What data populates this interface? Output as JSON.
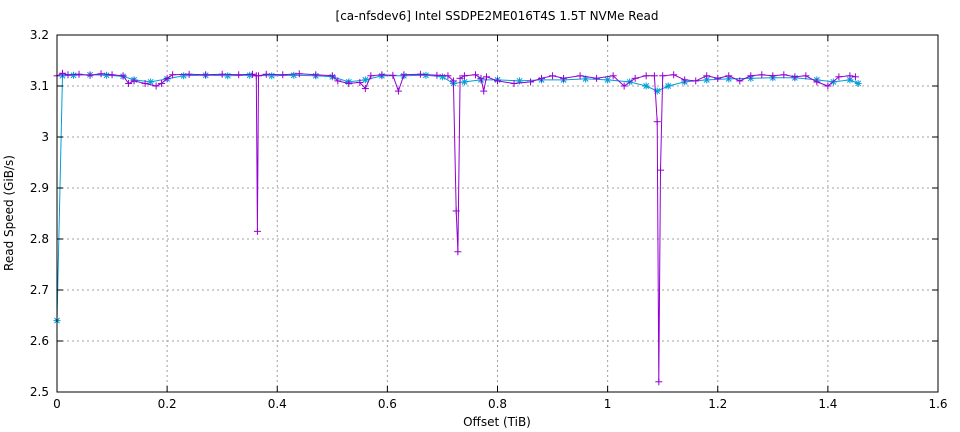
{
  "chart_data": {
    "type": "line",
    "title": "[ca-nfsdev6] Intel SSDPE2ME016T4S 1.5T NVMe Read",
    "xlabel": "Offset (TiB)",
    "ylabel": "Read Speed (GiB/s)",
    "xlim": [
      0,
      1.6
    ],
    "ylim": [
      2.5,
      3.2
    ],
    "xticks": [
      0,
      0.2,
      0.4,
      0.6,
      0.8,
      1,
      1.2,
      1.4,
      1.6
    ],
    "xtick_labels": [
      "0",
      "0.2",
      "0.4",
      "0.6",
      "0.8",
      "1",
      "1.2",
      "1.4",
      "1.6"
    ],
    "yticks": [
      2.5,
      2.6,
      2.7,
      2.8,
      2.9,
      3,
      3.1,
      3.2
    ],
    "ytick_labels": [
      "2.5",
      "2.6",
      "2.7",
      "2.8",
      "2.9",
      "3",
      "3.1",
      "3.2"
    ],
    "grid": true,
    "legend": "none",
    "series": [
      {
        "marker": "plus",
        "color": "#9400d3",
        "points": [
          [
            0.0,
            3.12
          ],
          [
            0.01,
            3.125
          ],
          [
            0.02,
            3.122
          ],
          [
            0.04,
            3.123
          ],
          [
            0.06,
            3.121
          ],
          [
            0.08,
            3.124
          ],
          [
            0.1,
            3.122
          ],
          [
            0.12,
            3.12
          ],
          [
            0.13,
            3.105
          ],
          [
            0.14,
            3.11
          ],
          [
            0.16,
            3.105
          ],
          [
            0.18,
            3.1
          ],
          [
            0.19,
            3.105
          ],
          [
            0.2,
            3.115
          ],
          [
            0.21,
            3.122
          ],
          [
            0.24,
            3.123
          ],
          [
            0.27,
            3.122
          ],
          [
            0.3,
            3.123
          ],
          [
            0.33,
            3.122
          ],
          [
            0.355,
            3.123
          ],
          [
            0.362,
            3.12
          ],
          [
            0.364,
            2.815
          ],
          [
            0.366,
            3.12
          ],
          [
            0.38,
            3.123
          ],
          [
            0.41,
            3.122
          ],
          [
            0.44,
            3.124
          ],
          [
            0.47,
            3.122
          ],
          [
            0.5,
            3.12
          ],
          [
            0.51,
            3.11
          ],
          [
            0.53,
            3.105
          ],
          [
            0.55,
            3.107
          ],
          [
            0.56,
            3.095
          ],
          [
            0.57,
            3.12
          ],
          [
            0.59,
            3.122
          ],
          [
            0.61,
            3.121
          ],
          [
            0.62,
            3.09
          ],
          [
            0.63,
            3.122
          ],
          [
            0.66,
            3.123
          ],
          [
            0.69,
            3.121
          ],
          [
            0.71,
            3.12
          ],
          [
            0.72,
            3.11
          ],
          [
            0.725,
            2.855
          ],
          [
            0.728,
            2.775
          ],
          [
            0.732,
            3.115
          ],
          [
            0.74,
            3.12
          ],
          [
            0.76,
            3.122
          ],
          [
            0.77,
            3.115
          ],
          [
            0.775,
            3.09
          ],
          [
            0.78,
            3.118
          ],
          [
            0.8,
            3.11
          ],
          [
            0.83,
            3.105
          ],
          [
            0.86,
            3.108
          ],
          [
            0.88,
            3.115
          ],
          [
            0.9,
            3.12
          ],
          [
            0.92,
            3.115
          ],
          [
            0.95,
            3.12
          ],
          [
            0.98,
            3.115
          ],
          [
            1.01,
            3.12
          ],
          [
            1.03,
            3.1
          ],
          [
            1.05,
            3.115
          ],
          [
            1.07,
            3.12
          ],
          [
            1.085,
            3.12
          ],
          [
            1.09,
            3.03
          ],
          [
            1.093,
            2.52
          ],
          [
            1.096,
            2.935
          ],
          [
            1.1,
            3.12
          ],
          [
            1.12,
            3.122
          ],
          [
            1.14,
            3.112
          ],
          [
            1.16,
            3.11
          ],
          [
            1.18,
            3.12
          ],
          [
            1.2,
            3.115
          ],
          [
            1.22,
            3.12
          ],
          [
            1.24,
            3.11
          ],
          [
            1.26,
            3.12
          ],
          [
            1.28,
            3.122
          ],
          [
            1.3,
            3.12
          ],
          [
            1.32,
            3.122
          ],
          [
            1.34,
            3.118
          ],
          [
            1.36,
            3.12
          ],
          [
            1.38,
            3.108
          ],
          [
            1.4,
            3.1
          ],
          [
            1.42,
            3.118
          ],
          [
            1.44,
            3.12
          ],
          [
            1.45,
            3.118
          ]
        ]
      },
      {
        "marker": "star",
        "color": "#009ed7",
        "points": [
          [
            0.0,
            2.64
          ],
          [
            0.01,
            3.12
          ],
          [
            0.03,
            3.121
          ],
          [
            0.06,
            3.122
          ],
          [
            0.09,
            3.121
          ],
          [
            0.12,
            3.119
          ],
          [
            0.14,
            3.112
          ],
          [
            0.17,
            3.108
          ],
          [
            0.2,
            3.114
          ],
          [
            0.23,
            3.12
          ],
          [
            0.27,
            3.121
          ],
          [
            0.31,
            3.12
          ],
          [
            0.35,
            3.121
          ],
          [
            0.39,
            3.12
          ],
          [
            0.43,
            3.121
          ],
          [
            0.47,
            3.12
          ],
          [
            0.5,
            3.118
          ],
          [
            0.53,
            3.108
          ],
          [
            0.56,
            3.112
          ],
          [
            0.59,
            3.12
          ],
          [
            0.63,
            3.12
          ],
          [
            0.67,
            3.121
          ],
          [
            0.7,
            3.118
          ],
          [
            0.72,
            3.105
          ],
          [
            0.74,
            3.108
          ],
          [
            0.77,
            3.112
          ],
          [
            0.8,
            3.112
          ],
          [
            0.84,
            3.11
          ],
          [
            0.88,
            3.112
          ],
          [
            0.92,
            3.112
          ],
          [
            0.96,
            3.114
          ],
          [
            1.0,
            3.112
          ],
          [
            1.04,
            3.108
          ],
          [
            1.07,
            3.1
          ],
          [
            1.09,
            3.09
          ],
          [
            1.11,
            3.1
          ],
          [
            1.14,
            3.108
          ],
          [
            1.18,
            3.112
          ],
          [
            1.22,
            3.114
          ],
          [
            1.26,
            3.115
          ],
          [
            1.3,
            3.116
          ],
          [
            1.34,
            3.116
          ],
          [
            1.38,
            3.112
          ],
          [
            1.41,
            3.108
          ],
          [
            1.44,
            3.112
          ],
          [
            1.455,
            3.105
          ]
        ]
      }
    ]
  }
}
